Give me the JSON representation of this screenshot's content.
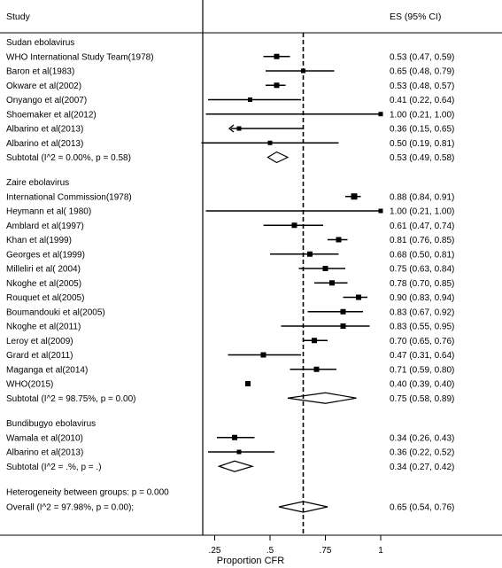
{
  "header": {
    "study_label": "Study",
    "es_label": "ES (95% CI)"
  },
  "chart_data": {
    "type": "forest",
    "xlabel": "Proportion CFR",
    "xlim": [
      0,
      1.15
    ],
    "ticks": [
      0.25,
      0.5,
      0.75,
      1
    ],
    "tick_labels": [
      ".25",
      ".5",
      ".75",
      "1"
    ],
    "reference_line": 0.65,
    "groups": [
      {
        "name": "Sudan ebolavirus",
        "studies": [
          {
            "label": "WHO International Study Team(1978)",
            "es": 0.53,
            "lo": 0.47,
            "hi": 0.59,
            "es_text": "0.53 (0.47, 0.59)",
            "w": 6
          },
          {
            "label": "Baron et al(1983)",
            "es": 0.65,
            "lo": 0.48,
            "hi": 0.79,
            "es_text": "0.65 (0.48, 0.79)",
            "w": 5
          },
          {
            "label": "Okware et al(2002)",
            "es": 0.53,
            "lo": 0.48,
            "hi": 0.57,
            "es_text": "0.53 (0.48, 0.57)",
            "w": 6
          },
          {
            "label": "Onyango et al(2007)",
            "es": 0.41,
            "lo": 0.22,
            "hi": 0.64,
            "es_text": "0.41 (0.22, 0.64)",
            "w": 5
          },
          {
            "label": "Shoemaker et al(2012)",
            "es": 1.0,
            "lo": 0.21,
            "hi": 1.0,
            "es_text": "1.00 (0.21, 1.00)",
            "w": 5
          },
          {
            "label": "Albarino et al(2013)",
            "es": 0.36,
            "lo": 0.15,
            "hi": 0.65,
            "es_text": "0.36 (0.15, 0.65)",
            "w": 5,
            "arrow_left": true
          },
          {
            "label": "Albarino et al(2013)",
            "es": 0.5,
            "lo": 0.19,
            "hi": 0.81,
            "es_text": "0.50 (0.19, 0.81)",
            "w": 5
          }
        ],
        "subtotal": {
          "label": "Subtotal  (I^2 = 0.00%, p = 0.58)",
          "es": 0.53,
          "lo": 0.49,
          "hi": 0.58,
          "es_text": "0.53 (0.49, 0.58)"
        }
      },
      {
        "name": "Zaire ebolavirus",
        "studies": [
          {
            "label": "International Commission(1978)",
            "es": 0.88,
            "lo": 0.84,
            "hi": 0.91,
            "es_text": "0.88 (0.84, 0.91)",
            "w": 7
          },
          {
            "label": "Heymann et al( 1980)",
            "es": 1.0,
            "lo": 0.21,
            "hi": 1.0,
            "es_text": "1.00 (0.21, 1.00)",
            "w": 5
          },
          {
            "label": "Amblard et al(1997)",
            "es": 0.61,
            "lo": 0.47,
            "hi": 0.74,
            "es_text": "0.61 (0.47, 0.74)",
            "w": 6
          },
          {
            "label": "Khan et al(1999)",
            "es": 0.81,
            "lo": 0.76,
            "hi": 0.85,
            "es_text": "0.81 (0.76, 0.85)",
            "w": 6
          },
          {
            "label": "Georges et al(1999)",
            "es": 0.68,
            "lo": 0.5,
            "hi": 0.81,
            "es_text": "0.68 (0.50, 0.81)",
            "w": 6
          },
          {
            "label": "Milleliri et al( 2004)",
            "es": 0.75,
            "lo": 0.63,
            "hi": 0.84,
            "es_text": "0.75 (0.63, 0.84)",
            "w": 6
          },
          {
            "label": "Nkoghe et al(2005)",
            "es": 0.78,
            "lo": 0.7,
            "hi": 0.85,
            "es_text": "0.78 (0.70, 0.85)",
            "w": 6
          },
          {
            "label": "Rouquet et al(2005)",
            "es": 0.9,
            "lo": 0.83,
            "hi": 0.94,
            "es_text": "0.90 (0.83, 0.94)",
            "w": 6
          },
          {
            "label": "Boumandouki et al(2005)",
            "es": 0.83,
            "lo": 0.67,
            "hi": 0.92,
            "es_text": "0.83 (0.67, 0.92)",
            "w": 6
          },
          {
            "label": "Nkoghe et al(2011)",
            "es": 0.83,
            "lo": 0.55,
            "hi": 0.95,
            "es_text": "0.83 (0.55, 0.95)",
            "w": 6
          },
          {
            "label": "Leroy et al(2009)",
            "es": 0.7,
            "lo": 0.65,
            "hi": 0.76,
            "es_text": "0.70 (0.65, 0.76)",
            "w": 6
          },
          {
            "label": "Grard et al(2011)",
            "es": 0.47,
            "lo": 0.31,
            "hi": 0.64,
            "es_text": "0.47 (0.31, 0.64)",
            "w": 6
          },
          {
            "label": "Maganga et al(2014)",
            "es": 0.71,
            "lo": 0.59,
            "hi": 0.8,
            "es_text": "0.71 (0.59, 0.80)",
            "w": 6
          },
          {
            "label": "WHO(2015)",
            "es": 0.4,
            "lo": 0.39,
            "hi": 0.4,
            "es_text": "0.40 (0.39, 0.40)",
            "w": 6
          }
        ],
        "subtotal": {
          "label": "Subtotal  (I^2 = 98.75%, p = 0.00)",
          "es": 0.75,
          "lo": 0.58,
          "hi": 0.89,
          "es_text": "0.75 (0.58, 0.89)"
        }
      },
      {
        "name": "Bundibugyo ebolavirus",
        "studies": [
          {
            "label": "Wamala et al(2010)",
            "es": 0.34,
            "lo": 0.26,
            "hi": 0.43,
            "es_text": "0.34 (0.26, 0.43)",
            "w": 6
          },
          {
            "label": "Albarino et al(2013)",
            "es": 0.36,
            "lo": 0.22,
            "hi": 0.52,
            "es_text": "0.36 (0.22, 0.52)",
            "w": 5
          }
        ],
        "subtotal": {
          "label": "Subtotal  (I^2 = .%, p = .)",
          "es": 0.34,
          "lo": 0.27,
          "hi": 0.42,
          "es_text": "0.34 (0.27, 0.42)"
        }
      }
    ],
    "heterogeneity_label": "Heterogeneity between groups: p = 0.000",
    "overall": {
      "label": "Overall  (I^2 = 97.98%, p = 0.00);",
      "es": 0.65,
      "lo": 0.54,
      "hi": 0.76,
      "es_text": "0.65 (0.54, 0.76)"
    }
  }
}
